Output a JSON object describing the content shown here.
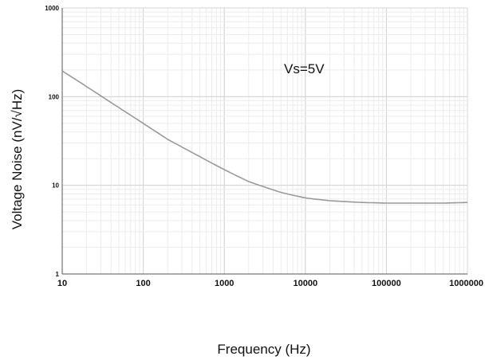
{
  "chart_data": {
    "type": "line",
    "x_scale": "log",
    "y_scale": "log",
    "xlim": [
      10,
      1000000
    ],
    "ylim": [
      1,
      1000
    ],
    "grid": true,
    "xlabel": "Frequency (Hz)",
    "ylabel": "Voltage Noise (nV/√Hz)",
    "x_tick_labels": [
      "10",
      "100",
      "1000",
      "10000",
      "100000",
      "1000000"
    ],
    "y_tick_labels": [
      "1",
      "10",
      "100",
      "1000"
    ],
    "annotation": "Vs=5V",
    "series": [
      {
        "color": "#9a9a9a",
        "x": [
          10,
          20,
          50,
          100,
          200,
          500,
          1000,
          2000,
          5000,
          10000,
          20000,
          50000,
          100000,
          200000,
          500000,
          1000000
        ],
        "y": [
          195,
          130,
          75,
          50,
          33,
          21,
          15,
          11,
          8.3,
          7.2,
          6.7,
          6.4,
          6.3,
          6.3,
          6.3,
          6.4
        ]
      }
    ]
  }
}
